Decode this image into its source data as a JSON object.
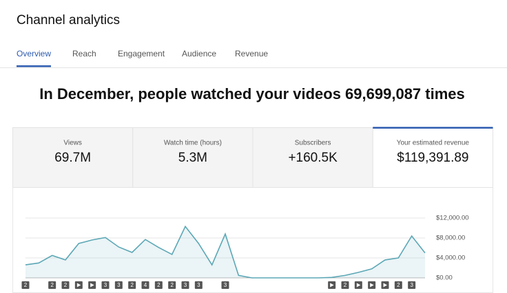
{
  "header": {
    "title": "Channel analytics"
  },
  "tabs": {
    "items": [
      "Overview",
      "Reach",
      "Engagement",
      "Audience",
      "Revenue"
    ],
    "active": 0
  },
  "headline": "In December, people watched your videos 69,699,087 times",
  "cards": {
    "items": [
      {
        "label": "Views",
        "value": "69.7M"
      },
      {
        "label": "Watch time (hours)",
        "value": "5.3M"
      },
      {
        "label": "Subscribers",
        "value": "+160.5K"
      },
      {
        "label": "Your estimated revenue",
        "value": "$119,391.89"
      }
    ],
    "active": 3
  },
  "chart_data": {
    "type": "area",
    "categories": [
      null,
      null,
      null,
      null,
      null,
      null,
      null,
      null,
      null,
      null,
      null,
      null,
      null,
      null,
      null,
      null,
      null,
      null,
      null,
      null,
      null,
      null,
      null,
      null,
      null,
      null,
      null,
      null,
      null,
      null,
      null
    ],
    "values": [
      2600,
      3000,
      4500,
      3600,
      6900,
      7600,
      8100,
      6200,
      5100,
      7700,
      6100,
      4700,
      10300,
      6900,
      2600,
      8800,
      500,
      0,
      0,
      0,
      0,
      0,
      0,
      100,
      500,
      1100,
      1800,
      3600,
      4000,
      8400,
      5000
    ],
    "color": "#5ba7b6",
    "ylim": [
      0,
      12000
    ],
    "yticks": [
      {
        "value": 0,
        "label": "$0.00"
      },
      {
        "value": 4000,
        "label": "$4,000.00"
      },
      {
        "value": 8000,
        "label": "$8,000.00"
      },
      {
        "value": 12000,
        "label": "$12,000.00"
      }
    ],
    "grid": true,
    "annotations": [
      "2",
      null,
      "2",
      "2",
      null,
      null,
      "3",
      "3",
      "2",
      "4",
      "2",
      "2",
      "3",
      "3",
      null,
      "3",
      null,
      null,
      null,
      null,
      null,
      null,
      null,
      null,
      "2",
      null,
      null,
      null,
      "2",
      "3",
      null
    ],
    "video": [
      false,
      false,
      false,
      false,
      true,
      true,
      false,
      false,
      false,
      false,
      false,
      false,
      false,
      false,
      false,
      false,
      false,
      false,
      false,
      false,
      false,
      false,
      false,
      true,
      false,
      true,
      true,
      true,
      false,
      false,
      false
    ]
  }
}
